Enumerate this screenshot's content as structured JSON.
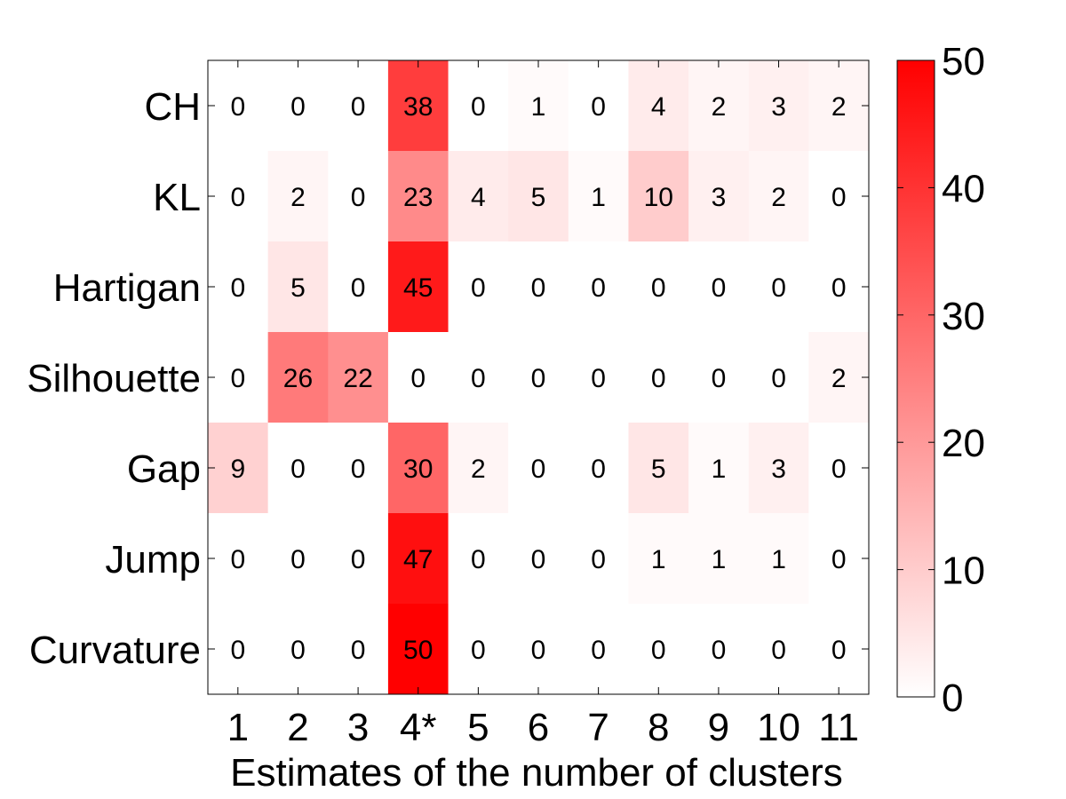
{
  "chart_data": {
    "type": "heatmap",
    "title": "",
    "xlabel": "Estimates of the number of clusters",
    "ylabel": "",
    "x_categories": [
      "1",
      "2",
      "3",
      "4*",
      "5",
      "6",
      "7",
      "8",
      "9",
      "10",
      "11"
    ],
    "y_categories": [
      "CH",
      "KL",
      "Hartigan",
      "Silhouette",
      "Gap",
      "Jump",
      "Curvature"
    ],
    "values": [
      [
        0,
        0,
        0,
        38,
        0,
        1,
        0,
        4,
        2,
        3,
        2
      ],
      [
        0,
        2,
        0,
        23,
        4,
        5,
        1,
        10,
        3,
        2,
        0
      ],
      [
        0,
        5,
        0,
        45,
        0,
        0,
        0,
        0,
        0,
        0,
        0
      ],
      [
        0,
        26,
        22,
        0,
        0,
        0,
        0,
        0,
        0,
        0,
        2
      ],
      [
        9,
        0,
        0,
        30,
        2,
        0,
        0,
        5,
        1,
        3,
        0
      ],
      [
        0,
        0,
        0,
        47,
        0,
        0,
        0,
        1,
        1,
        1,
        0
      ],
      [
        0,
        0,
        0,
        50,
        0,
        0,
        0,
        0,
        0,
        0,
        0
      ]
    ],
    "color_range": [
      0,
      50
    ],
    "colormap": {
      "low": "#ffffff",
      "high": "#ff0000"
    },
    "colorbar_ticks": [
      "0",
      "10",
      "20",
      "30",
      "40",
      "50"
    ],
    "colorbar_tick_values": [
      0,
      10,
      20,
      30,
      40,
      50
    ],
    "legend": "colorbar-right"
  }
}
